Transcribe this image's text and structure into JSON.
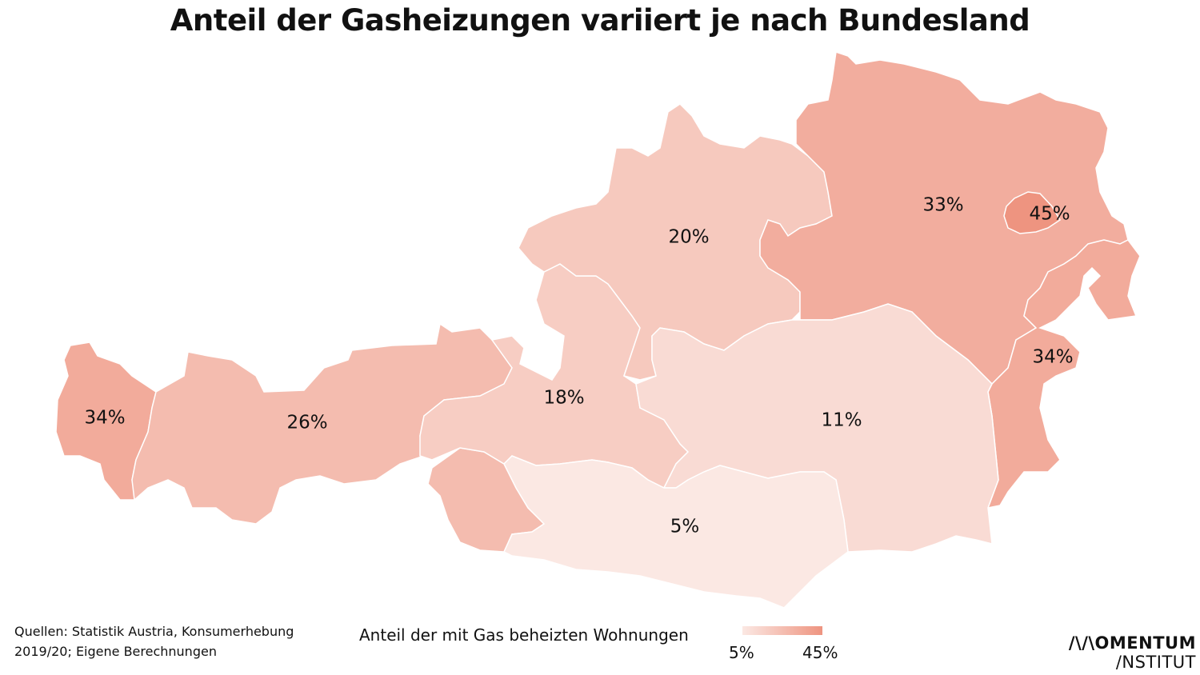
{
  "title": "Anteil der Gasheizungen variiert je nach Bundesland",
  "regions": [
    {
      "id": "vorarlberg",
      "value": 34,
      "label": "34%"
    },
    {
      "id": "tirol",
      "value": 26,
      "label": "26%"
    },
    {
      "id": "osttirol",
      "value": 26,
      "label": ""
    },
    {
      "id": "salzburg",
      "value": 18,
      "label": "18%"
    },
    {
      "id": "oberoesterreich",
      "value": 20,
      "label": "20%"
    },
    {
      "id": "niederoesterreich",
      "value": 33,
      "label": "33%"
    },
    {
      "id": "wien",
      "value": 45,
      "label": "45%"
    },
    {
      "id": "burgenland",
      "value": 34,
      "label": "34%"
    },
    {
      "id": "steiermark",
      "value": 11,
      "label": "11%"
    },
    {
      "id": "kaernten",
      "value": 5,
      "label": "5%"
    }
  ],
  "scale": {
    "min": 5,
    "max": 45,
    "min_color": "#fbe8e3",
    "max_color": "#ee9480"
  },
  "legend": {
    "title": "Anteil der mit Gas beheizten Wohnungen",
    "min_label": "5%",
    "max_label": "45%"
  },
  "source": {
    "line1": "Quellen: Statistik Austria, Konsumerhebung",
    "line2": "2019/20; Eigene Berechnungen"
  },
  "logo": {
    "line1": "/\\/\\OMENTUM",
    "line2": "/NSTITUT"
  }
}
